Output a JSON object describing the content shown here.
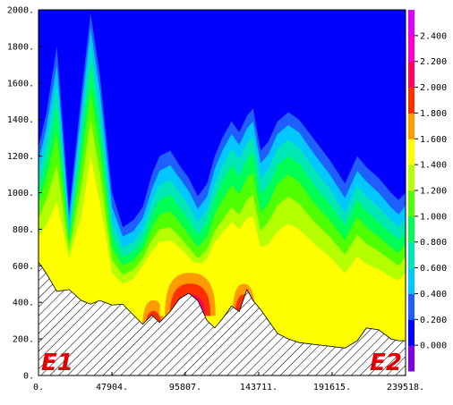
{
  "chart_data": {
    "type": "heatmap",
    "title": "",
    "xlabel": "",
    "ylabel": "",
    "xlim": [
      0,
      239518
    ],
    "ylim": [
      0,
      2000
    ],
    "x_ticks": [
      0,
      47904,
      95807,
      143711,
      191615,
      239518
    ],
    "x_tick_labels": [
      "0.",
      "47904.",
      "95807.",
      "143711.",
      "191615.",
      "239518."
    ],
    "y_ticks": [
      0,
      200,
      400,
      600,
      800,
      1000,
      1200,
      1400,
      1600,
      1800,
      2000
    ],
    "y_tick_labels": [
      "0.",
      "200.",
      "400.",
      "600.",
      "800.",
      "1000.",
      "1200.",
      "1400.",
      "1600.",
      "1800.",
      "2000."
    ],
    "endpoint_labels": [
      "E1",
      "E2"
    ],
    "colorbar": {
      "levels": [
        0.0,
        0.2,
        0.4,
        0.6,
        0.8,
        1.0,
        1.2,
        1.4,
        1.6,
        1.8,
        2.0,
        2.2,
        2.4
      ],
      "labels": [
        "0.000",
        "0.200",
        "0.400",
        "0.600",
        "0.800",
        "1.000",
        "1.200",
        "1.400",
        "1.600",
        "1.800",
        "2.000",
        "2.200",
        "2.400"
      ],
      "colors": [
        "#8000e0",
        "#0000ff",
        "#1f5fff",
        "#00c8ff",
        "#00e6b4",
        "#00ff55",
        "#50ff00",
        "#b4ff00",
        "#ffff00",
        "#ff9a00",
        "#ff3000",
        "#ff0060",
        "#ff00c8",
        "#e000ff"
      ]
    },
    "terrain": {
      "x": [
        0,
        5000,
        12000,
        20000,
        28000,
        34000,
        40000,
        48000,
        55000,
        62000,
        68000,
        74000,
        79000,
        86000,
        92000,
        98000,
        104000,
        110000,
        115000,
        120000,
        126000,
        131000,
        136000,
        140000,
        145000,
        150000,
        156000,
        163000,
        170000,
        180000,
        190000,
        200000,
        208000,
        214000,
        222000,
        230000,
        235000,
        239518
      ],
      "y": [
        620,
        560,
        460,
        470,
        410,
        390,
        410,
        385,
        390,
        330,
        280,
        330,
        290,
        350,
        420,
        450,
        410,
        300,
        260,
        310,
        380,
        350,
        470,
        410,
        360,
        300,
        230,
        200,
        180,
        170,
        160,
        150,
        190,
        260,
        250,
        200,
        190,
        190
      ]
    },
    "isolines": [
      {
        "level": 0.2,
        "y": [
          1250,
          1430,
          1800,
          900,
          1540,
          1980,
          1650,
          1000,
          810,
          850,
          920,
          1100,
          1200,
          1230,
          1150,
          1080,
          980,
          1050,
          1200,
          1300,
          1390,
          1330,
          1420,
          1460,
          1230,
          1280,
          1390,
          1440,
          1400,
          1290,
          1180,
          1050,
          1200,
          1140,
          1080,
          1000,
          960,
          1000
        ]
      },
      {
        "level": 0.4,
        "y": [
          1170,
          1350,
          1700,
          850,
          1460,
          1900,
          1560,
          920,
          760,
          790,
          860,
          1020,
          1120,
          1150,
          1080,
          1010,
          910,
          980,
          1130,
          1230,
          1320,
          1260,
          1350,
          1390,
          1160,
          1210,
          1320,
          1370,
          1330,
          1210,
          1100,
          970,
          1120,
          1060,
          1000,
          920,
          880,
          930
        ]
      },
      {
        "level": 0.6,
        "y": [
          1090,
          1270,
          1600,
          800,
          1380,
          1810,
          1470,
          840,
          700,
          730,
          800,
          950,
          1040,
          1070,
          1000,
          930,
          840,
          910,
          1050,
          1150,
          1240,
          1180,
          1270,
          1310,
          1080,
          1130,
          1240,
          1290,
          1250,
          1130,
          1020,
          890,
          1040,
          980,
          920,
          850,
          810,
          860
        ]
      },
      {
        "level": 0.8,
        "y": [
          1010,
          1180,
          1480,
          760,
          1290,
          1700,
          1370,
          770,
          650,
          680,
          740,
          880,
          960,
          990,
          920,
          850,
          770,
          840,
          970,
          1060,
          1150,
          1090,
          1180,
          1220,
          990,
          1040,
          1150,
          1200,
          1160,
          1040,
          940,
          820,
          960,
          900,
          840,
          780,
          740,
          790
        ]
      },
      {
        "level": 1.0,
        "y": [
          940,
          1080,
          1330,
          720,
          1180,
          1560,
          1250,
          700,
          600,
          630,
          690,
          810,
          880,
          900,
          840,
          770,
          700,
          760,
          880,
          960,
          1040,
          990,
          1080,
          1110,
          890,
          940,
          1050,
          1100,
          1060,
          940,
          850,
          740,
          870,
          810,
          760,
          700,
          670,
          720
        ]
      },
      {
        "level": 1.2,
        "y": [
          860,
          960,
          1150,
          680,
          1040,
          1400,
          1110,
          630,
          550,
          580,
          640,
          740,
          800,
          810,
          760,
          700,
          640,
          690,
          790,
          850,
          920,
          880,
          960,
          990,
          790,
          840,
          930,
          980,
          940,
          840,
          760,
          660,
          770,
          720,
          680,
          630,
          600,
          650
        ]
      },
      {
        "level": 1.4,
        "y": [
          760,
          820,
          950,
          640,
          870,
          1200,
          950,
          560,
          500,
          530,
          600,
          680,
          730,
          740,
          700,
          650,
          590,
          640,
          730,
          780,
          840,
          800,
          860,
          870,
          700,
          720,
          790,
          830,
          800,
          720,
          650,
          560,
          650,
          610,
          580,
          540,
          520,
          560
        ]
      }
    ],
    "hotspots": [
      {
        "x": 20000,
        "y": 470
      },
      {
        "x": 55000,
        "y": 420
      },
      {
        "x": 75000,
        "y": 470
      },
      {
        "x": 99000,
        "y": 620
      },
      {
        "x": 134000,
        "y": 560
      }
    ]
  }
}
